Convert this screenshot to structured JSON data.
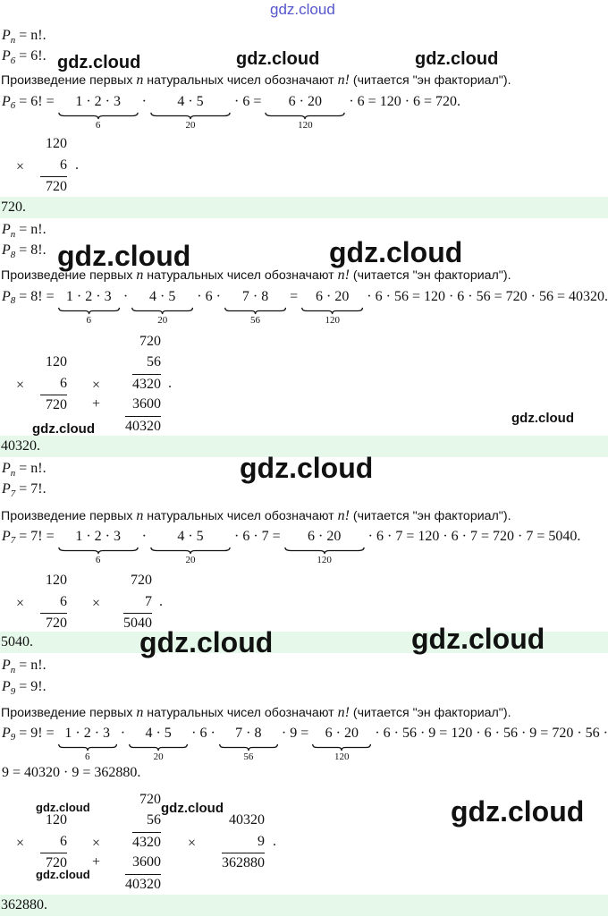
{
  "watermarks": [
    "gdz.cloud",
    "gdz.cloud",
    "gdz.cloud",
    "gdz.cloud",
    "gdz.cloud",
    "gdz.cloud",
    "gdz.cloud",
    "gdz.cloud",
    "gdz.cloud",
    "gdz.cloud",
    "gdz.cloud",
    "gdz.cloud",
    "gdz.cloud",
    "gdz.cloud",
    "gdz.cloud"
  ],
  "sections": [
    {
      "def": {
        "symbol": "P",
        "sub": "n",
        "rhs": "= n!."
      },
      "given": {
        "symbol": "P",
        "sub": "6",
        "rhs": "= 6!."
      },
      "statement": [
        "Произведение первых ",
        "n",
        " натуральных чисел обозначают ",
        "n!",
        " (читается \"эн факториал\")."
      ],
      "lhs": {
        "symbol": "P",
        "sub": "6"
      },
      "lines": [
        [
          " = 6! = ",
          {
            "over": "1 · 2 · 3",
            "under": "6"
          },
          " · ",
          {
            "over": "4 · 5",
            "under": "20"
          },
          " · 6 = ",
          {
            "over": "6 · 20",
            "under": "120"
          },
          " · 6 = 120 · 6 = 720."
        ]
      ],
      "columns": [
        {
          "op": "×",
          "a": "120",
          "b": "6",
          "product": "720"
        }
      ],
      "end": ".",
      "answer": "720."
    },
    {
      "def": {
        "symbol": "P",
        "sub": "n",
        "rhs": "= n!."
      },
      "given": {
        "symbol": "P",
        "sub": "8",
        "rhs": "= 8!."
      },
      "statement": [
        "Произведение первых ",
        "n",
        " натуральных чисел обозначают ",
        "n!",
        " (читается \"эн факториал\")."
      ],
      "lhs": {
        "symbol": "P",
        "sub": "8"
      },
      "lines": [
        [
          " = 8! = ",
          {
            "over": "1 · 2 · 3",
            "under": "6"
          },
          " · ",
          {
            "over": "4 · 5",
            "under": "20"
          },
          " · 6 · ",
          {
            "over": "7 · 8",
            "under": "56"
          },
          " = ",
          {
            "over": "6 · 20",
            "under": "120"
          },
          " · 6 · 56 = 120 · 6 · 56 = 720 · 56 = 40320."
        ]
      ],
      "columns": [
        {
          "op": "×",
          "a": "120",
          "b": "6",
          "product": "720"
        },
        {
          "op": "×",
          "a": "720",
          "b": "56",
          "product": "4320",
          "add_op": "+",
          "addend": "3600",
          "sum": "40320"
        }
      ],
      "end": ".",
      "answer": "40320."
    },
    {
      "def": {
        "symbol": "P",
        "sub": "n",
        "rhs": "= n!."
      },
      "given": {
        "symbol": "P",
        "sub": "7",
        "rhs": "= 7!."
      },
      "statement": [
        "Произведение первых ",
        "n",
        " натуральных чисел обозначают ",
        "n!",
        " (читается \"эн факториал\")."
      ],
      "lhs": {
        "symbol": "P",
        "sub": "7"
      },
      "lines": [
        [
          " = 7! = ",
          {
            "over": "1 · 2 · 3",
            "under": "6"
          },
          " · ",
          {
            "over": "4 · 5",
            "under": "20"
          },
          " · 6 · 7 = ",
          {
            "over": "6 · 20",
            "under": "120"
          },
          " · 6 · 7 = 120 · 6 · 7 = 720 · 7 = 5040."
        ]
      ],
      "columns": [
        {
          "op": "×",
          "a": "120",
          "b": "6",
          "product": "720"
        },
        {
          "op": "×",
          "a": "720",
          "b": "7",
          "product": "5040"
        }
      ],
      "end": ".",
      "answer": "5040."
    },
    {
      "def": {
        "symbol": "P",
        "sub": "n",
        "rhs": "= n!."
      },
      "given": {
        "symbol": "P",
        "sub": "9",
        "rhs": "= 9!."
      },
      "statement": [
        "Произведение первых ",
        "n",
        " натуральных чисел обозначают ",
        "n!",
        " (читается \"эн факториал\")."
      ],
      "lhs": {
        "symbol": "P",
        "sub": "9"
      },
      "lines": [
        [
          " = 9! = ",
          {
            "over": "1 · 2 · 3",
            "under": "6"
          },
          " · ",
          {
            "over": "4 · 5",
            "under": "20"
          },
          " · 6 · ",
          {
            "over": "7 · 8",
            "under": "56"
          },
          " · 9 = ",
          {
            "over": "6 · 20",
            "under": "120"
          },
          " · 6 · 56 · 9 = 120 · 6 · 56 · 9 = 720 · 56 ·"
        ],
        [
          "9 = 40320 · 9 = 362880."
        ]
      ],
      "columns": [
        {
          "op": "×",
          "a": "120",
          "b": "6",
          "product": "720"
        },
        {
          "op": "×",
          "a": "720",
          "b": "56",
          "product": "4320",
          "add_op": "+",
          "addend": "3600",
          "sum": "40320"
        },
        {
          "op": "×",
          "a": "40320",
          "b": "9",
          "product": "362880"
        }
      ],
      "end": ".",
      "answer": "362880."
    }
  ]
}
